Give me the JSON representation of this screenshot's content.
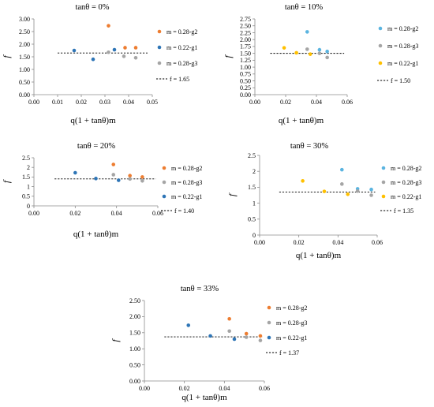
{
  "colors": {
    "g2": "#ed7d31",
    "g3": "#a5a5a5",
    "g1_dark": "#2e75b6",
    "g1_light": "#5ab4e0",
    "gold": "#ffc000"
  },
  "chart_data": [
    {
      "type": "scatter",
      "title": "tanθ = 0%",
      "xlabel": "q(1 + tanθ)m",
      "ylabel": "f",
      "xlim": [
        0,
        0.05
      ],
      "ylim": [
        0,
        3.0
      ],
      "xticks": [
        "0.00",
        "0.01",
        "0.02",
        "0.03",
        "0.04",
        "0.05"
      ],
      "yticks": [
        "0.00",
        "0.50",
        "1.00",
        "1.50",
        "2.00",
        "2.50",
        "3.00"
      ],
      "series": [
        {
          "name": "m = 0.28-g2",
          "color": "#ed7d31",
          "x": [
            0.0315,
            0.0385,
            0.043
          ],
          "y": [
            2.73,
            1.86,
            1.86
          ]
        },
        {
          "name": "m = 0.22-g1",
          "color": "#2e75b6",
          "x": [
            0.017,
            0.025,
            0.034
          ],
          "y": [
            1.75,
            1.4,
            1.78
          ]
        },
        {
          "name": "m = 0.28-g3",
          "color": "#a5a5a5",
          "x": [
            0.0315,
            0.038,
            0.043
          ],
          "y": [
            1.68,
            1.52,
            1.46
          ]
        }
      ],
      "fit": {
        "label": "f = 1.65",
        "value": 1.65,
        "x": [
          0.01,
          0.048
        ]
      }
    },
    {
      "type": "scatter",
      "title": "tanθ = 10%",
      "xlabel": "q(1 + tanθ)m",
      "ylabel": "f",
      "xlim": [
        0,
        0.06
      ],
      "ylim": [
        0,
        2.75
      ],
      "xticks": [
        "0.00",
        "0.02",
        "0.04",
        "0.06"
      ],
      "yticks": [
        "0.00",
        "0.25",
        "0.50",
        "0.75",
        "1.00",
        "1.25",
        "1.50",
        "1.75",
        "2.00",
        "2.25",
        "2.50",
        "2.75"
      ],
      "series": [
        {
          "name": "m = 0.28-g2",
          "color": "#5ab4e0",
          "x": [
            0.034,
            0.042,
            0.047
          ],
          "y": [
            2.28,
            1.63,
            1.57
          ]
        },
        {
          "name": "m = 0.28-g3",
          "color": "#a5a5a5",
          "x": [
            0.034,
            0.042,
            0.047
          ],
          "y": [
            1.65,
            1.5,
            1.35
          ]
        },
        {
          "name": "m = 0.22-g1",
          "color": "#ffc000",
          "x": [
            0.019,
            0.027,
            0.036
          ],
          "y": [
            1.7,
            1.52,
            1.47
          ]
        }
      ],
      "fit": {
        "label": "f = 1.50",
        "value": 1.5,
        "x": [
          0.01,
          0.058
        ]
      }
    },
    {
      "type": "scatter",
      "title": "tanθ = 20%",
      "xlabel": "q(1 + tanθ)m",
      "ylabel": "f",
      "xlim": [
        0,
        0.06
      ],
      "ylim": [
        0,
        2.5
      ],
      "xticks": [
        "0.00",
        "0.02",
        "0.04",
        "0.06"
      ],
      "yticks": [
        "0",
        "0.5",
        "1",
        "1.5",
        "2",
        "2.5"
      ],
      "series": [
        {
          "name": "m = 0.28-g2",
          "color": "#ed7d31",
          "x": [
            0.0385,
            0.0465,
            0.0525
          ],
          "y": [
            2.15,
            1.57,
            1.5
          ]
        },
        {
          "name": "m = 0.28-g3",
          "color": "#a5a5a5",
          "x": [
            0.0385,
            0.0465,
            0.0525
          ],
          "y": [
            1.62,
            1.4,
            1.3
          ]
        },
        {
          "name": "m = 0.22-g1",
          "color": "#2e75b6",
          "x": [
            0.02,
            0.03,
            0.041
          ],
          "y": [
            1.72,
            1.42,
            1.33
          ]
        }
      ],
      "fit": {
        "label": "f = 1.40",
        "value": 1.4,
        "x": [
          0.01,
          0.059
        ]
      }
    },
    {
      "type": "scatter",
      "title": "tanθ = 30%",
      "xlabel": "q(1 + tanθ)m",
      "ylabel": "f",
      "xlim": [
        0,
        0.06
      ],
      "ylim": [
        0,
        2.5
      ],
      "xticks": [
        "0.00",
        "0.02",
        "0.04",
        "0.06"
      ],
      "yticks": [
        "0",
        "0.5",
        "1",
        "1.5",
        "2",
        "2.5"
      ],
      "series": [
        {
          "name": "m = 0.28-g2",
          "color": "#5ab4e0",
          "x": [
            0.042,
            0.05,
            0.057
          ],
          "y": [
            2.05,
            1.45,
            1.43
          ]
        },
        {
          "name": "m = 0.28-g3",
          "color": "#a5a5a5",
          "x": [
            0.042,
            0.05,
            0.057
          ],
          "y": [
            1.6,
            1.38,
            1.25
          ]
        },
        {
          "name": "m = 0.22-g1",
          "color": "#ffc000",
          "x": [
            0.022,
            0.033,
            0.045
          ],
          "y": [
            1.7,
            1.37,
            1.28
          ]
        }
      ],
      "fit": {
        "label": "f = 1.35",
        "value": 1.35,
        "x": [
          0.01,
          0.059
        ]
      }
    },
    {
      "type": "scatter",
      "title": "tanθ = 33%",
      "xlabel": "q(1 + tanθ)m",
      "ylabel": "f",
      "xlim": [
        0,
        0.06
      ],
      "ylim": [
        0,
        2.5
      ],
      "xticks": [
        "0.00",
        "0.02",
        "0.04",
        "0.06"
      ],
      "yticks": [
        "0.00",
        "0.50",
        "1.00",
        "1.50",
        "2.00",
        "2.50"
      ],
      "series": [
        {
          "name": "m = 0.28-g2",
          "color": "#ed7d31",
          "x": [
            0.0425,
            0.051,
            0.058
          ],
          "y": [
            1.93,
            1.47,
            1.4
          ]
        },
        {
          "name": "m = 0.28-g3",
          "color": "#a5a5a5",
          "x": [
            0.0425,
            0.051,
            0.058
          ],
          "y": [
            1.55,
            1.36,
            1.26
          ]
        },
        {
          "name": "m = 0.22-g1",
          "color": "#2e75b6",
          "x": [
            0.022,
            0.033,
            0.045
          ],
          "y": [
            1.73,
            1.4,
            1.3
          ]
        }
      ],
      "fit": {
        "label": "f = 1.37",
        "value": 1.37,
        "x": [
          0.01,
          0.059
        ]
      }
    }
  ]
}
